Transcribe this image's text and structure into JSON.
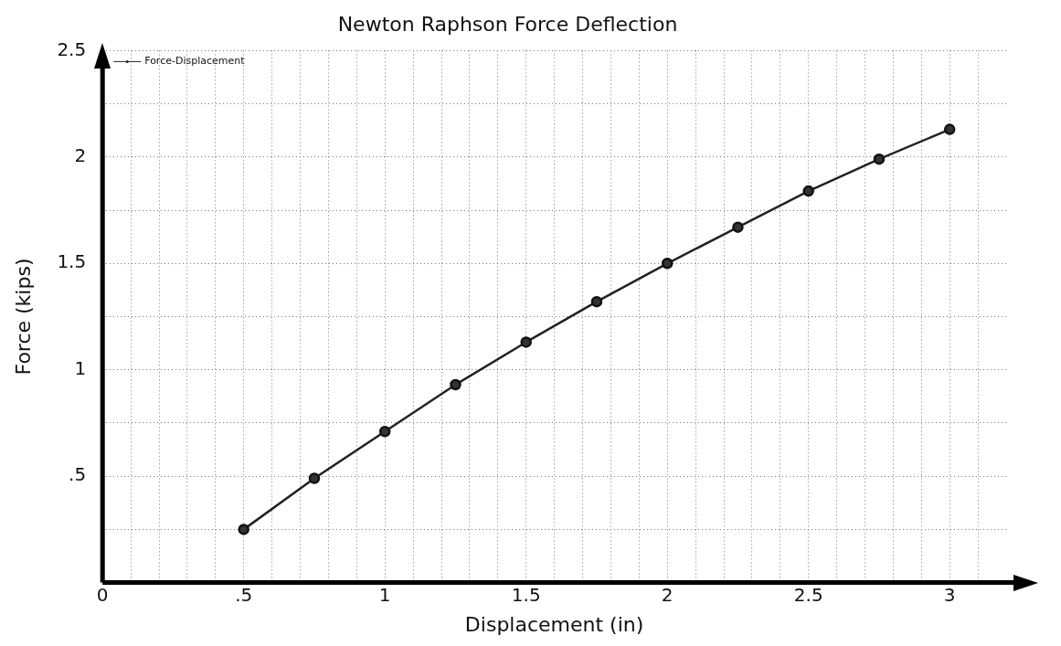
{
  "chart_data": {
    "type": "line",
    "title": "Newton Raphson Force Deflection",
    "xlabel": "Displacement (in)",
    "ylabel": "Force (kips)",
    "x": [
      0.5,
      0.75,
      1,
      1.25,
      1.5,
      1.75,
      2,
      2.25,
      2.5,
      2.75,
      3
    ],
    "series": [
      {
        "name": "Force-Displacement",
        "color": "#222222",
        "values": [
          0.25,
          0.49,
          0.71,
          0.93,
          1.13,
          1.32,
          1.5,
          1.67,
          1.84,
          1.99,
          2.13
        ]
      }
    ],
    "xlim": [
      0,
      3.2
    ],
    "xticks": [
      0,
      {
        "value": 0.1,
        "label": null
      },
      {
        "value": 0.2,
        "label": null
      },
      {
        "value": 0.3,
        "label": null
      },
      {
        "value": 0.4,
        "label": null
      },
      {
        "value": 0.5,
        "label": ".5"
      },
      {
        "value": 0.6,
        "label": null
      },
      {
        "value": 0.7,
        "label": null
      },
      {
        "value": 0.8,
        "label": null
      },
      {
        "value": 0.9,
        "label": null
      },
      1,
      {
        "value": 1.1,
        "label": null
      },
      {
        "value": 1.2,
        "label": null
      },
      {
        "value": 1.3,
        "label": null
      },
      {
        "value": 1.4,
        "label": null
      },
      1.5,
      {
        "value": 1.6,
        "label": null
      },
      {
        "value": 1.7,
        "label": null
      },
      {
        "value": 1.8,
        "label": null
      },
      {
        "value": 1.9,
        "label": null
      },
      2,
      {
        "value": 2.1,
        "label": null
      },
      {
        "value": 2.2,
        "label": null
      },
      {
        "value": 2.3,
        "label": null
      },
      {
        "value": 2.4,
        "label": null
      },
      2.5,
      {
        "value": 2.6,
        "label": null
      },
      {
        "value": 2.7,
        "label": null
      },
      {
        "value": 2.8,
        "label": null
      },
      {
        "value": 2.9,
        "label": null
      },
      3,
      {
        "value": 3.1,
        "label": null
      }
    ],
    "ylim": [
      0,
      2.5
    ],
    "yticks": [
      {
        "value": 0,
        "label": null
      },
      {
        "value": 0.25,
        "label": null
      },
      {
        "value": 0.5,
        "label": ".5"
      },
      {
        "value": 0.75,
        "label": null
      },
      1,
      {
        "value": 1.25,
        "label": null
      },
      1.5,
      {
        "value": 1.75,
        "label": null
      },
      2,
      {
        "value": 2.25,
        "label": null
      },
      2.5
    ],
    "grid": true,
    "legend": "top left",
    "marker": "circle",
    "line_style": "solid"
  }
}
